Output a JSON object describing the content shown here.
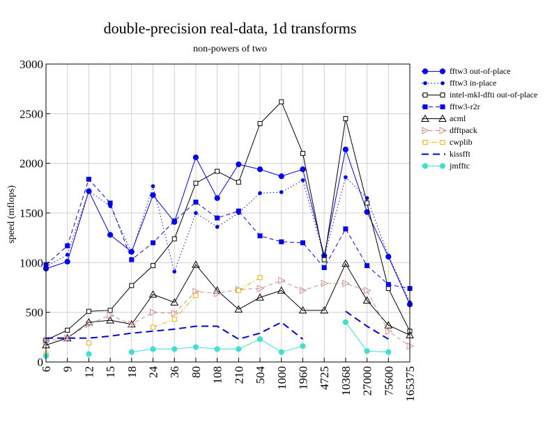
{
  "chart_data": {
    "type": "line",
    "title": "double-precision real-data, 1d transforms",
    "subtitle": "non-powers of two",
    "xlabel": "",
    "ylabel": "speed (mflops)",
    "ylim": [
      0,
      3000
    ],
    "yticks": [
      "0",
      "500",
      "1000",
      "1500",
      "2000",
      "2500",
      "3000"
    ],
    "categories": [
      "6",
      "9",
      "12",
      "15",
      "18",
      "24",
      "36",
      "80",
      "108",
      "210",
      "504",
      "1000",
      "1960",
      "4725",
      "10368",
      "27000",
      "75600",
      "165375"
    ],
    "grid": true,
    "legend_position": "right",
    "series": [
      {
        "name": "fftw3 out-of-place",
        "color": "#0000ff",
        "dash": "solid",
        "marker": "filled-circle",
        "values": [
          940,
          1010,
          1720,
          1280,
          1110,
          1680,
          1410,
          2060,
          1650,
          1990,
          1940,
          1870,
          1940,
          1070,
          2140,
          1510,
          1060,
          580
        ]
      },
      {
        "name": "fftw3 in-place",
        "color": "#0000ff",
        "dash": "dotted",
        "marker": "small-circle",
        "values": [
          960,
          1080,
          1720,
          1570,
          1100,
          1770,
          910,
          1500,
          1360,
          1500,
          1700,
          1710,
          1830,
          1060,
          1860,
          1650,
          1070,
          600
        ]
      },
      {
        "name": "intel-mkl-dfti out-of-place",
        "color": "#000000",
        "dash": "solid",
        "marker": "open-square",
        "values": [
          220,
          320,
          510,
          520,
          770,
          970,
          1240,
          1800,
          1920,
          1810,
          2400,
          2620,
          2100,
          1030,
          2450,
          1600,
          740,
          310
        ]
      },
      {
        "name": "fftw3-r2r",
        "color": "#0000ff",
        "dash": "dashed",
        "marker": "filled-square",
        "values": [
          980,
          1170,
          1840,
          1600,
          1030,
          1200,
          1420,
          1610,
          1450,
          1520,
          1270,
          1210,
          1200,
          950,
          1340,
          970,
          780,
          740
        ]
      },
      {
        "name": "acml",
        "color": "#000000",
        "dash": "solid",
        "marker": "open-triangle",
        "values": [
          170,
          240,
          400,
          420,
          380,
          680,
          600,
          980,
          720,
          530,
          650,
          720,
          520,
          520,
          990,
          620,
          370,
          270
        ]
      },
      {
        "name": "dfftpack",
        "color": "#d09090",
        "dash": "dashed",
        "marker": "open-triangle-right",
        "values": [
          210,
          240,
          380,
          470,
          380,
          500,
          490,
          710,
          690,
          730,
          740,
          820,
          720,
          790,
          790,
          720,
          310,
          160
        ]
      },
      {
        "name": "cwplib",
        "color": "#f0b000",
        "dash": "dashdot",
        "marker": "open-square",
        "values": [
          80,
          null,
          190,
          null,
          null,
          350,
          430,
          670,
          null,
          720,
          850,
          null,
          null,
          null,
          null,
          null,
          null,
          null
        ]
      },
      {
        "name": "kissfft",
        "color": "#0000dd",
        "dash": "longdash",
        "marker": "none",
        "values": [
          240,
          240,
          240,
          260,
          290,
          310,
          330,
          360,
          360,
          230,
          290,
          400,
          230,
          null,
          510,
          360,
          230,
          null
        ]
      },
      {
        "name": "jmfftc",
        "color": "#40e0d0",
        "dash": "solid",
        "marker": "filled-circle",
        "values": [
          60,
          null,
          80,
          null,
          100,
          130,
          130,
          150,
          130,
          130,
          230,
          100,
          160,
          null,
          400,
          110,
          100,
          null
        ]
      }
    ]
  }
}
